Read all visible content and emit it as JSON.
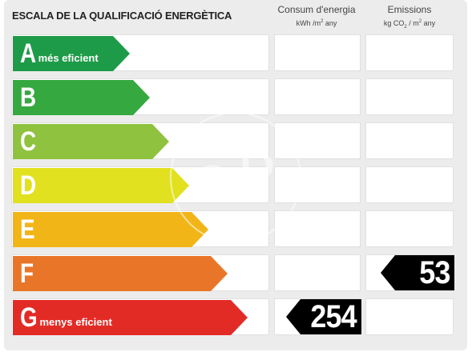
{
  "header": {
    "title": "ESCALA DE LA QUALIFICACIÓ ENERGÈTICA",
    "consumption": {
      "label": "Consum d'energia",
      "unit_prefix": "kWh /m",
      "unit_exp": "2",
      "unit_suffix": " any"
    },
    "emissions": {
      "label": "Emissions",
      "unit_prefix": "kg CO",
      "unit_sub": "2",
      "unit_mid": " / m",
      "unit_exp": "2",
      "unit_suffix": " any"
    }
  },
  "rows": [
    {
      "letter": "A",
      "desc": "més eficient",
      "color": "#1e9b48"
    },
    {
      "letter": "B",
      "desc": "",
      "color": "#35a840"
    },
    {
      "letter": "C",
      "desc": "",
      "color": "#8fc23f"
    },
    {
      "letter": "D",
      "desc": "",
      "color": "#e2e11f"
    },
    {
      "letter": "E",
      "desc": "",
      "color": "#f2b518"
    },
    {
      "letter": "F",
      "desc": "",
      "color": "#e97628"
    },
    {
      "letter": "G",
      "desc": "menys eficient",
      "color": "#e32b26"
    }
  ],
  "ratings": {
    "consumption": {
      "value": "254",
      "class": "G"
    },
    "emissions": {
      "value": "53",
      "class": "F"
    }
  },
  "watermark": {
    "text": "aP"
  }
}
